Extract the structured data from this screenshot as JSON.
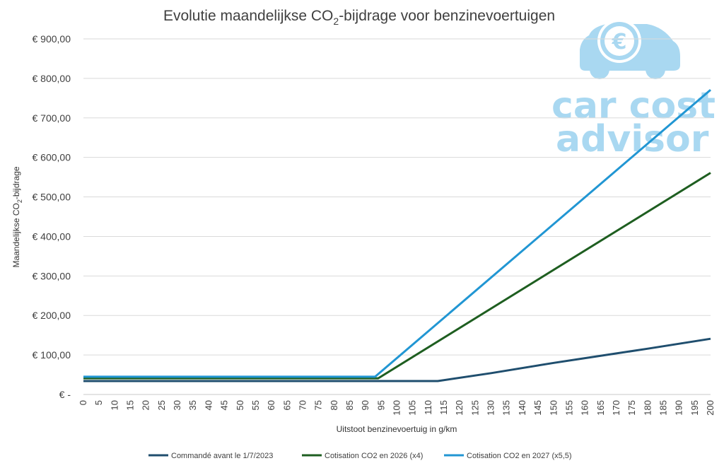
{
  "chart_data": {
    "type": "line",
    "title": "Evolutie maandelijkse CO",
    "title_sub": "2",
    "title_rest": "-bijdrage voor benzinevoertuigen",
    "xlabel": "Uitstoot benzinevoertuig in g/km",
    "ylabel": "Maandelijkse CO",
    "ylabel_sub": "2",
    "ylabel_rest": "-bijdrage",
    "ylim": [
      0,
      900
    ],
    "xlim": [
      0,
      200
    ],
    "y_ticks": [
      {
        "value": 0,
        "label": "€ -"
      },
      {
        "value": 100,
        "label": "€ 100,00"
      },
      {
        "value": 200,
        "label": "€ 200,00"
      },
      {
        "value": 300,
        "label": "€ 300,00"
      },
      {
        "value": 400,
        "label": "€ 400,00"
      },
      {
        "value": 500,
        "label": "€ 500,00"
      },
      {
        "value": 600,
        "label": "€ 600,00"
      },
      {
        "value": 700,
        "label": "€ 700,00"
      },
      {
        "value": 800,
        "label": "€ 800,00"
      },
      {
        "value": 900,
        "label": "€ 900,00"
      }
    ],
    "x_ticks": [
      "0",
      "5",
      "10",
      "15",
      "20",
      "25",
      "30",
      "35",
      "40",
      "45",
      "50",
      "55",
      "60",
      "65",
      "70",
      "75",
      "80",
      "85",
      "90",
      "95",
      "100",
      "105",
      "110",
      "115",
      "120",
      "125",
      "130",
      "135",
      "140",
      "145",
      "150",
      "155",
      "160",
      "165",
      "170",
      "175",
      "180",
      "185",
      "190",
      "195",
      "200"
    ],
    "grid": "horizontal",
    "legend_position": "bottom",
    "series": [
      {
        "name": "Commandé avant le 1/7/2023",
        "color": "#1f4e6e",
        "points": [
          [
            0,
            34
          ],
          [
            113,
            34
          ],
          [
            130,
            54
          ],
          [
            150,
            80
          ],
          [
            170,
            104
          ],
          [
            180,
            116
          ],
          [
            200,
            141
          ]
        ]
      },
      {
        "name": "Cotisation CO2 en 2026 (x4)",
        "color": "#1e5e20",
        "points": [
          [
            0,
            41
          ],
          [
            94,
            41
          ],
          [
            200,
            561
          ]
        ]
      },
      {
        "name": "Cotisation CO2 en 2027 (x5,5)",
        "color": "#2196d3",
        "points": [
          [
            0,
            45
          ],
          [
            93,
            45
          ],
          [
            200,
            771
          ]
        ]
      }
    ]
  },
  "logo": {
    "line1": "car cost",
    "line2": "advisor",
    "color": "#a9d8f1",
    "icon": "car-euro-icon",
    "currency_symbol": "€"
  }
}
